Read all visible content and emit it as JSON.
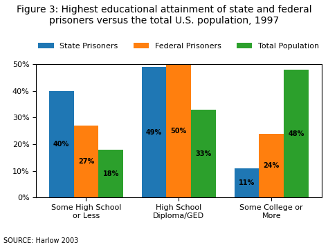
{
  "chart_data": {
    "type": "bar",
    "title": "Figure 3: Highest educational attainment of state and federal prisoners versus the total U.S. population, 1997",
    "annotations": [
      "SOURCE: Harlow 2003"
    ],
    "categories": [
      "Some High School or Less",
      "High School Diploma/GED",
      "Some College or More"
    ],
    "series": [
      {
        "name": "State Prisoners",
        "values": [
          40,
          49,
          11
        ],
        "value_labels": [
          "40%",
          "49%",
          "11%"
        ]
      },
      {
        "name": "Federal Prisoners",
        "values": [
          27,
          50,
          24
        ],
        "value_labels": [
          "27%",
          "50%",
          "24%"
        ]
      },
      {
        "name": "Total Population",
        "values": [
          18,
          33,
          48
        ],
        "value_labels": [
          "18%",
          "33%",
          "48%"
        ]
      }
    ],
    "ylim": [
      0,
      50
    ],
    "yticks": [
      {
        "value": 0,
        "label": "0%"
      },
      {
        "value": 10,
        "label": "10%"
      },
      {
        "value": 20,
        "label": "20%"
      },
      {
        "value": 30,
        "label": "30%"
      },
      {
        "value": 40,
        "label": "40%"
      },
      {
        "value": 50,
        "label": "50%"
      }
    ],
    "data_labels": true,
    "legend": "upper center",
    "grid": false
  }
}
